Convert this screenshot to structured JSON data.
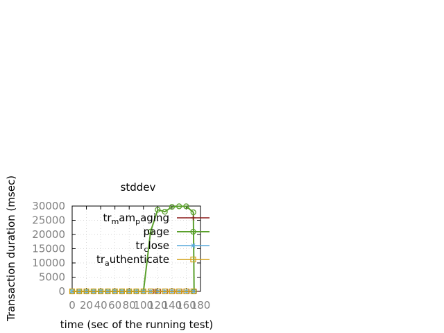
{
  "chart_data": {
    "type": "line",
    "title": "stddev",
    "xlabel": "time (sec of the running test)",
    "ylabel": "Transaction duration (msec)",
    "xlim": [
      0,
      180
    ],
    "ylim": [
      0,
      30000
    ],
    "xticks": [
      0,
      20,
      40,
      60,
      80,
      100,
      120,
      140,
      160,
      180
    ],
    "yticks": [
      0,
      5000,
      10000,
      15000,
      20000,
      25000,
      30000
    ],
    "x_tick_labels": [
      "0",
      "20",
      "40",
      "60",
      "80",
      "100",
      "120",
      "140",
      "160",
      "180"
    ],
    "y_tick_labels": [
      "0",
      "5000",
      "10000",
      "15000",
      "20000",
      "25000",
      "30000"
    ],
    "grid": true,
    "legend_position": "top-right",
    "series": [
      {
        "name": "tr_mam_paging",
        "legend_parts": [
          "tr",
          "m",
          "am",
          "p",
          "aging"
        ],
        "color": "#8b1a1a",
        "marker": "plus",
        "x": [
          114,
          116,
          118,
          120,
          124,
          134,
          144,
          154,
          164,
          174
        ],
        "y": [
          0,
          0,
          0,
          0,
          0,
          0,
          0,
          0,
          0,
          0
        ]
      },
      {
        "name": "page",
        "legend_parts": [
          "page"
        ],
        "color": "#5aa02c",
        "marker": "circle",
        "x": [
          0,
          10,
          20,
          30,
          40,
          50,
          60,
          70,
          80,
          90,
          100,
          110,
          120,
          130,
          140,
          150,
          160,
          170,
          171
        ],
        "y": [
          0,
          0,
          0,
          0,
          0,
          0,
          0,
          0,
          0,
          0,
          0,
          21000,
          28700,
          28000,
          29700,
          29900,
          29900,
          27800,
          0
        ]
      },
      {
        "name": "tr_close",
        "legend_parts": [
          "tr",
          "c",
          "lose"
        ],
        "color": "#56a8dc",
        "marker": "star",
        "x": [
          0,
          10,
          20,
          30,
          40,
          50,
          60,
          70,
          80,
          90,
          100,
          110,
          120,
          130,
          140,
          150,
          160,
          170
        ],
        "y": [
          0,
          0,
          0,
          0,
          0,
          0,
          0,
          0,
          0,
          0,
          0,
          0,
          0,
          0,
          0,
          0,
          0,
          0
        ]
      },
      {
        "name": "tr_authenticate",
        "legend_parts": [
          "tr",
          "a",
          "uthenticate"
        ],
        "color": "#d4a017",
        "marker": "square",
        "x": [
          0,
          10,
          20,
          30,
          40,
          50,
          60,
          70,
          80,
          90,
          100,
          110,
          120,
          130,
          140,
          150,
          160,
          170
        ],
        "y": [
          0,
          0,
          0,
          0,
          0,
          0,
          0,
          0,
          0,
          0,
          0,
          0,
          0,
          0,
          0,
          0,
          0,
          0
        ]
      }
    ]
  }
}
